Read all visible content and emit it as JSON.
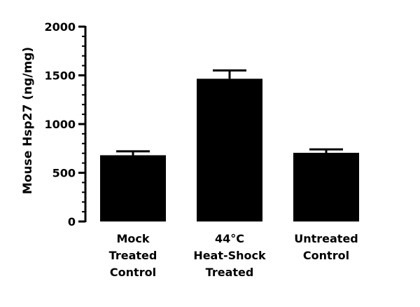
{
  "chart_data": {
    "type": "bar",
    "title": "",
    "xlabel": "",
    "ylabel": "Mouse Hsp27 (ng/mg)",
    "ylim": [
      0,
      2000
    ],
    "yticks": [
      "0",
      "500",
      "1000",
      "1500",
      "2000"
    ],
    "minor_tick_step": 100,
    "grid": false,
    "categories": [
      [
        "Mock",
        "Treated",
        "Control"
      ],
      [
        "44°C",
        "Heat-Shock",
        "Treated"
      ],
      [
        "Untreated",
        "Control"
      ]
    ],
    "values": [
      680,
      1465,
      705
    ],
    "error_upper": [
      40,
      85,
      35
    ],
    "bar_color": "#000000"
  }
}
